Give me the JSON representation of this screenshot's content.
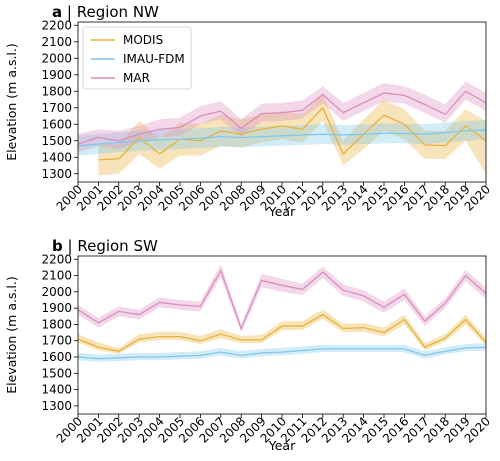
{
  "chart_data": [
    {
      "type": "line",
      "panel_letter": "a",
      "title": "Region NW",
      "xlabel": "Year",
      "ylabel": "Elevation (m a.s.l.)",
      "xlim": [
        2000,
        2020
      ],
      "ylim": [
        1250,
        2220
      ],
      "yticks": [
        1300,
        1400,
        1500,
        1600,
        1700,
        1800,
        1900,
        2000,
        2100,
        2200
      ],
      "legend": "top-left",
      "x": [
        2000,
        2001,
        2002,
        2003,
        2004,
        2005,
        2006,
        2007,
        2008,
        2009,
        2010,
        2011,
        2012,
        2013,
        2014,
        2015,
        2016,
        2017,
        2018,
        2019,
        2020
      ],
      "series": [
        {
          "name": "MODIS",
          "color": "#e8b23a",
          "x": [
            2001,
            2002,
            2003,
            2004,
            2005,
            2006,
            2007,
            2008,
            2009,
            2010,
            2011,
            2012,
            2013,
            2014,
            2015,
            2016,
            2017,
            2018,
            2019,
            2020
          ],
          "values": [
            1385,
            1390,
            1520,
            1420,
            1510,
            1500,
            1560,
            1540,
            1570,
            1590,
            1570,
            1700,
            1420,
            1540,
            1655,
            1600,
            1475,
            1470,
            1590,
            1500
          ],
          "lower": [
            1290,
            1300,
            1420,
            1330,
            1410,
            1410,
            1470,
            1460,
            1490,
            1510,
            1490,
            1620,
            1350,
            1450,
            1560,
            1510,
            1390,
            1390,
            1500,
            1300
          ],
          "upper": [
            1480,
            1480,
            1620,
            1510,
            1610,
            1600,
            1660,
            1630,
            1660,
            1680,
            1660,
            1780,
            1500,
            1630,
            1750,
            1690,
            1560,
            1560,
            1690,
            1620
          ]
        },
        {
          "name": "IMAU-FDM",
          "color": "#7ec8ec",
          "x": [
            2000,
            2001,
            2002,
            2003,
            2004,
            2005,
            2006,
            2007,
            2008,
            2009,
            2010,
            2011,
            2012,
            2013,
            2014,
            2015,
            2016,
            2017,
            2018,
            2019,
            2020
          ],
          "values": [
            1470,
            1480,
            1490,
            1500,
            1505,
            1510,
            1515,
            1525,
            1520,
            1525,
            1530,
            1535,
            1540,
            1535,
            1540,
            1545,
            1545,
            1540,
            1550,
            1560,
            1565
          ],
          "lower": [
            1410,
            1420,
            1430,
            1440,
            1445,
            1450,
            1455,
            1465,
            1460,
            1465,
            1470,
            1475,
            1480,
            1475,
            1480,
            1485,
            1485,
            1480,
            1490,
            1500,
            1505
          ],
          "upper": [
            1530,
            1540,
            1550,
            1560,
            1565,
            1570,
            1575,
            1585,
            1580,
            1585,
            1590,
            1595,
            1600,
            1595,
            1600,
            1605,
            1605,
            1600,
            1610,
            1620,
            1625
          ]
        },
        {
          "name": "MAR",
          "color": "#d98ec0",
          "x": [
            2000,
            2001,
            2002,
            2003,
            2004,
            2005,
            2006,
            2007,
            2008,
            2009,
            2010,
            2011,
            2012,
            2013,
            2014,
            2015,
            2016,
            2017,
            2018,
            2019,
            2020
          ],
          "values": [
            1480,
            1520,
            1500,
            1540,
            1570,
            1580,
            1650,
            1680,
            1575,
            1665,
            1670,
            1685,
            1780,
            1670,
            1730,
            1790,
            1775,
            1720,
            1660,
            1800,
            1730
          ],
          "lower": [
            1430,
            1470,
            1450,
            1490,
            1520,
            1530,
            1600,
            1630,
            1525,
            1615,
            1620,
            1635,
            1730,
            1620,
            1680,
            1740,
            1725,
            1670,
            1610,
            1750,
            1680
          ],
          "upper": [
            1540,
            1570,
            1560,
            1590,
            1630,
            1640,
            1710,
            1740,
            1630,
            1725,
            1730,
            1745,
            1830,
            1730,
            1790,
            1850,
            1830,
            1780,
            1720,
            1860,
            1790
          ]
        }
      ]
    },
    {
      "type": "line",
      "panel_letter": "b",
      "title": "Region SW",
      "xlabel": "Year",
      "ylabel": "Elevation (m a.s.l.)",
      "xlim": [
        2000,
        2020
      ],
      "ylim": [
        1250,
        2220
      ],
      "yticks": [
        1300,
        1400,
        1500,
        1600,
        1700,
        1800,
        1900,
        2000,
        2100,
        2200
      ],
      "x": [
        2000,
        2001,
        2002,
        2003,
        2004,
        2005,
        2006,
        2007,
        2008,
        2009,
        2010,
        2011,
        2012,
        2013,
        2014,
        2015,
        2016,
        2017,
        2018,
        2019,
        2020
      ],
      "series": [
        {
          "name": "MODIS",
          "color": "#e8b23a",
          "x": [
            2000,
            2001,
            2002,
            2003,
            2004,
            2005,
            2006,
            2007,
            2008,
            2009,
            2010,
            2011,
            2012,
            2013,
            2014,
            2015,
            2016,
            2017,
            2018,
            2019,
            2020
          ],
          "values": [
            1710,
            1660,
            1635,
            1710,
            1725,
            1725,
            1700,
            1740,
            1705,
            1705,
            1790,
            1790,
            1860,
            1775,
            1780,
            1750,
            1830,
            1660,
            1715,
            1830,
            1690
          ],
          "lower": [
            1690,
            1640,
            1620,
            1690,
            1705,
            1705,
            1680,
            1715,
            1685,
            1685,
            1765,
            1765,
            1835,
            1750,
            1755,
            1725,
            1800,
            1640,
            1695,
            1800,
            1670
          ],
          "upper": [
            1740,
            1690,
            1655,
            1740,
            1755,
            1755,
            1730,
            1770,
            1730,
            1735,
            1820,
            1820,
            1890,
            1805,
            1810,
            1780,
            1860,
            1685,
            1740,
            1860,
            1715
          ]
        },
        {
          "name": "IMAU-FDM",
          "color": "#7ec8ec",
          "x": [
            2000,
            2001,
            2002,
            2003,
            2004,
            2005,
            2006,
            2007,
            2008,
            2009,
            2010,
            2011,
            2012,
            2013,
            2014,
            2015,
            2016,
            2017,
            2018,
            2019,
            2020
          ],
          "values": [
            1600,
            1590,
            1595,
            1600,
            1600,
            1605,
            1610,
            1630,
            1610,
            1625,
            1630,
            1640,
            1650,
            1650,
            1650,
            1650,
            1650,
            1610,
            1635,
            1655,
            1660
          ],
          "lower": [
            1580,
            1570,
            1575,
            1580,
            1580,
            1585,
            1590,
            1610,
            1590,
            1605,
            1610,
            1620,
            1630,
            1630,
            1630,
            1630,
            1630,
            1590,
            1615,
            1635,
            1640
          ],
          "upper": [
            1625,
            1615,
            1620,
            1625,
            1625,
            1630,
            1635,
            1655,
            1635,
            1650,
            1655,
            1665,
            1675,
            1675,
            1675,
            1675,
            1675,
            1635,
            1660,
            1680,
            1685
          ]
        },
        {
          "name": "MAR",
          "color": "#d98ec0",
          "x": [
            2000,
            2001,
            2002,
            2003,
            2004,
            2005,
            2006,
            2007,
            2008,
            2009,
            2010,
            2011,
            2012,
            2013,
            2014,
            2015,
            2016,
            2017,
            2018,
            2019,
            2020
          ],
          "values": [
            1890,
            1810,
            1880,
            1860,
            1935,
            1920,
            1910,
            2130,
            1775,
            2070,
            2040,
            2015,
            2120,
            2010,
            1975,
            1905,
            1985,
            1820,
            1930,
            2100,
            1990
          ],
          "lower": [
            1860,
            1780,
            1850,
            1830,
            1905,
            1890,
            1880,
            2090,
            1750,
            2030,
            2000,
            1980,
            2085,
            1975,
            1940,
            1870,
            1950,
            1790,
            1900,
            2065,
            1955
          ],
          "upper": [
            1920,
            1840,
            1910,
            1890,
            1965,
            1950,
            1940,
            2170,
            1800,
            2110,
            2080,
            2050,
            2155,
            2045,
            2010,
            1940,
            2020,
            1850,
            1960,
            2135,
            2025
          ]
        }
      ]
    }
  ]
}
